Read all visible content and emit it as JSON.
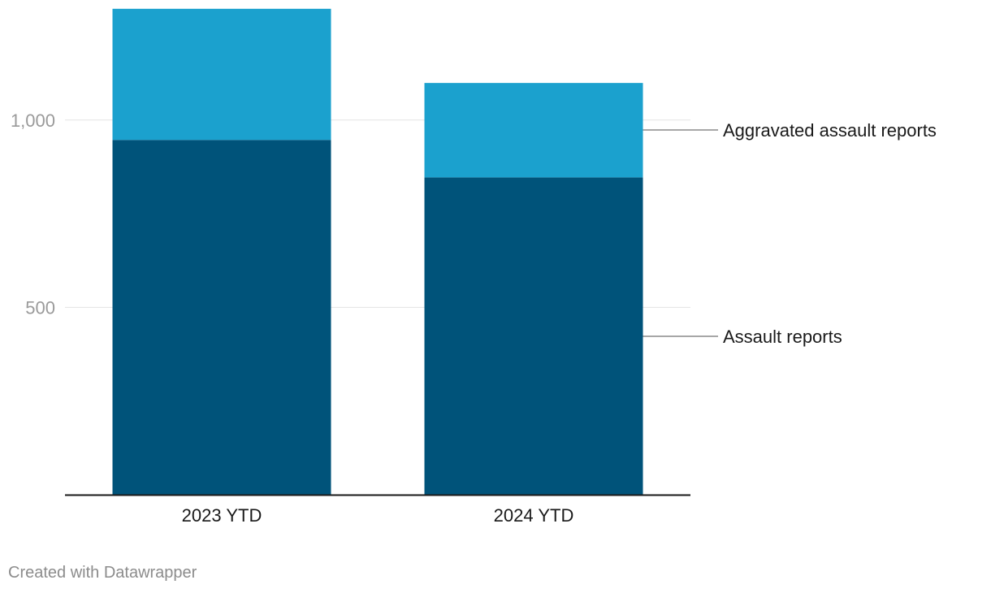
{
  "chart_data": {
    "type": "bar",
    "stacked": true,
    "categories": [
      "2023 YTD",
      "2024 YTD"
    ],
    "series": [
      {
        "name": "Assault reports",
        "values": [
          947,
          847
        ],
        "color": "#00537a"
      },
      {
        "name": "Aggravated assault reports",
        "values": [
          350,
          252
        ],
        "color": "#1ba1ce"
      }
    ],
    "ylim": [
      0,
      1300
    ],
    "yticks": [
      {
        "value": 500,
        "label": "500"
      },
      {
        "value": 1000,
        "label": "1,000"
      }
    ],
    "grid": true,
    "legend": "direct-labels-right",
    "title": "",
    "xlabel": "",
    "ylabel": ""
  },
  "colors": {
    "grid": "#e3e3e3",
    "axis": "#1a1a1a",
    "leader": "#8a8a8a"
  },
  "footer": {
    "credit": "Created with Datawrapper"
  }
}
